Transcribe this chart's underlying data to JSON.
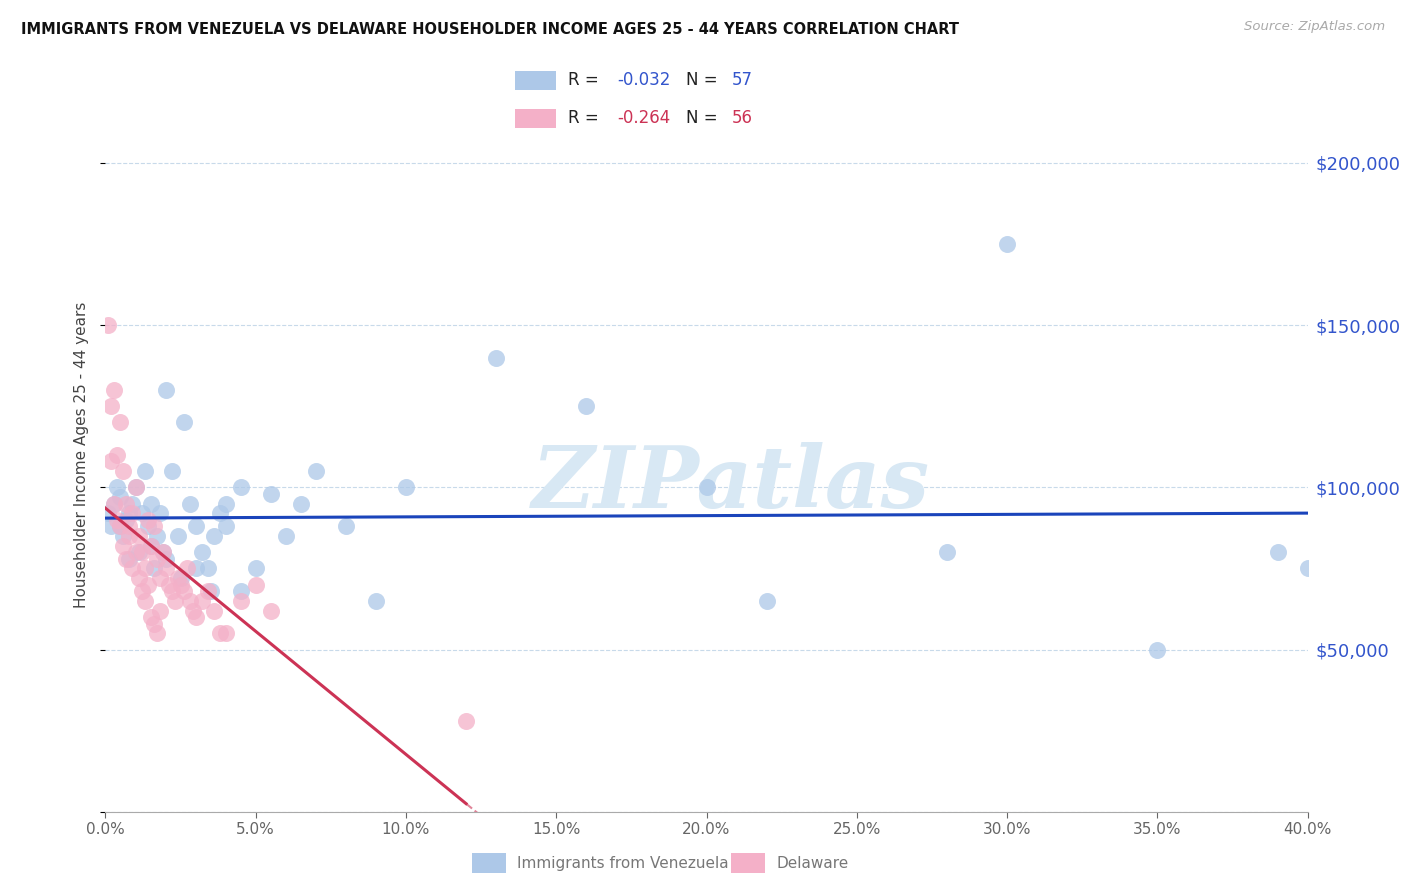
{
  "title": "IMMIGRANTS FROM VENEZUELA VS DELAWARE HOUSEHOLDER INCOME AGES 25 - 44 YEARS CORRELATION CHART",
  "source": "Source: ZipAtlas.com",
  "ylabel": "Householder Income Ages 25 - 44 years",
  "legend_blue_label": "Immigrants from Venezuela",
  "legend_pink_label": "Delaware",
  "R_blue": -0.032,
  "N_blue": 57,
  "R_pink": -0.264,
  "N_pink": 56,
  "blue_color": "#adc8e8",
  "pink_color": "#f4b0c8",
  "trend_blue_color": "#1a44bb",
  "trend_pink_color": "#cc3355",
  "watermark_color": "#d8e8f4",
  "xlim_min": 0.0,
  "xlim_max": 0.4,
  "ylim_min": 0,
  "ylim_max": 220000,
  "ytick_vals": [
    0,
    50000,
    100000,
    150000,
    200000
  ],
  "xtick_vals": [
    0.0,
    0.05,
    0.1,
    0.15,
    0.2,
    0.25,
    0.3,
    0.35,
    0.4
  ],
  "blue_x": [
    0.001,
    0.002,
    0.003,
    0.004,
    0.005,
    0.006,
    0.007,
    0.008,
    0.009,
    0.01,
    0.011,
    0.012,
    0.013,
    0.014,
    0.015,
    0.016,
    0.017,
    0.018,
    0.019,
    0.02,
    0.022,
    0.024,
    0.026,
    0.028,
    0.03,
    0.032,
    0.034,
    0.036,
    0.038,
    0.04,
    0.045,
    0.05,
    0.055,
    0.06,
    0.065,
    0.07,
    0.08,
    0.09,
    0.1,
    0.13,
    0.16,
    0.2,
    0.22,
    0.28,
    0.3,
    0.35,
    0.39,
    0.4,
    0.005,
    0.008,
    0.015,
    0.02,
    0.025,
    0.03,
    0.035,
    0.04,
    0.045
  ],
  "blue_y": [
    92000,
    88000,
    95000,
    100000,
    97000,
    85000,
    90000,
    78000,
    95000,
    100000,
    80000,
    92000,
    105000,
    88000,
    95000,
    75000,
    85000,
    92000,
    80000,
    130000,
    105000,
    85000,
    120000,
    95000,
    88000,
    80000,
    75000,
    85000,
    92000,
    88000,
    68000,
    75000,
    98000,
    85000,
    95000,
    105000,
    88000,
    65000,
    100000,
    140000,
    125000,
    100000,
    65000,
    80000,
    175000,
    50000,
    80000,
    75000,
    88000,
    92000,
    82000,
    78000,
    72000,
    75000,
    68000,
    95000,
    100000
  ],
  "pink_x": [
    0.001,
    0.002,
    0.003,
    0.004,
    0.005,
    0.006,
    0.007,
    0.008,
    0.009,
    0.01,
    0.011,
    0.012,
    0.013,
    0.014,
    0.015,
    0.016,
    0.017,
    0.018,
    0.019,
    0.02,
    0.021,
    0.022,
    0.023,
    0.024,
    0.025,
    0.026,
    0.027,
    0.028,
    0.029,
    0.03,
    0.032,
    0.034,
    0.036,
    0.038,
    0.04,
    0.045,
    0.05,
    0.055,
    0.002,
    0.003,
    0.004,
    0.005,
    0.006,
    0.007,
    0.008,
    0.009,
    0.01,
    0.011,
    0.012,
    0.013,
    0.014,
    0.015,
    0.016,
    0.017,
    0.018,
    0.12
  ],
  "pink_y": [
    150000,
    125000,
    130000,
    110000,
    120000,
    105000,
    95000,
    88000,
    92000,
    100000,
    85000,
    80000,
    75000,
    90000,
    82000,
    88000,
    78000,
    72000,
    80000,
    75000,
    70000,
    68000,
    65000,
    72000,
    70000,
    68000,
    75000,
    65000,
    62000,
    60000,
    65000,
    68000,
    62000,
    55000,
    55000,
    65000,
    70000,
    62000,
    108000,
    95000,
    90000,
    88000,
    82000,
    78000,
    85000,
    75000,
    80000,
    72000,
    68000,
    65000,
    70000,
    60000,
    58000,
    55000,
    62000,
    28000
  ]
}
